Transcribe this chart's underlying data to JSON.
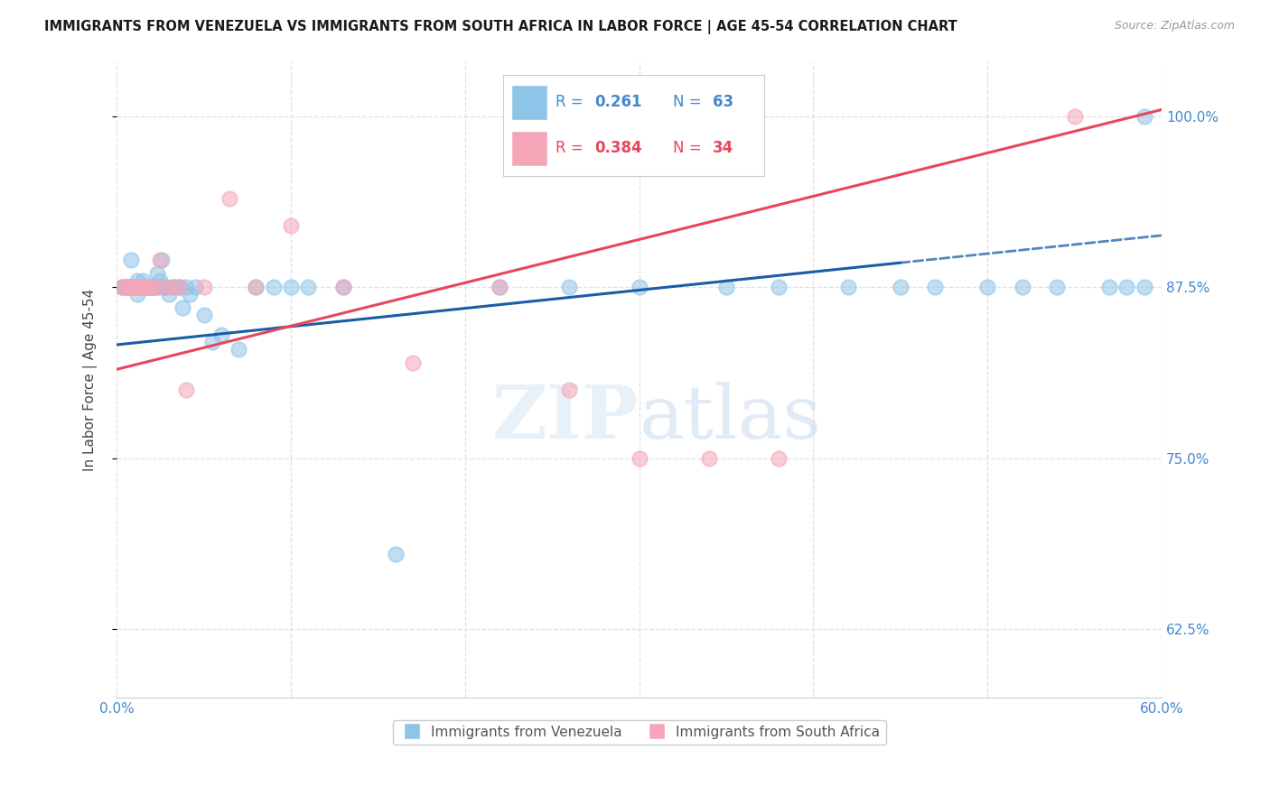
{
  "title": "IMMIGRANTS FROM VENEZUELA VS IMMIGRANTS FROM SOUTH AFRICA IN LABOR FORCE | AGE 45-54 CORRELATION CHART",
  "source": "Source: ZipAtlas.com",
  "ylabel": "In Labor Force | Age 45-54",
  "xlim": [
    0.0,
    0.6
  ],
  "ylim": [
    0.575,
    1.04
  ],
  "yticks": [
    0.625,
    0.75,
    0.875,
    1.0
  ],
  "xticks": [
    0.0,
    0.1,
    0.2,
    0.3,
    0.4,
    0.5,
    0.6
  ],
  "legend_R1": "0.261",
  "legend_N1": "63",
  "legend_R2": "0.384",
  "legend_N2": "34",
  "color_venezuela": "#8ec4e8",
  "color_south_africa": "#f4a6b8",
  "color_trend_venezuela": "#1a5ca8",
  "color_trend_south_africa": "#e8465a",
  "color_axis_blue": "#4488cc",
  "watermark_zip": "ZIP",
  "watermark_atlas": "atlas",
  "background_color": "#ffffff",
  "grid_color": "#e0e0e0",
  "venezuela_x": [
    0.003,
    0.004,
    0.005,
    0.006,
    0.007,
    0.008,
    0.009,
    0.01,
    0.011,
    0.012,
    0.012,
    0.013,
    0.014,
    0.015,
    0.015,
    0.016,
    0.016,
    0.017,
    0.018,
    0.018,
    0.019,
    0.02,
    0.021,
    0.022,
    0.023,
    0.024,
    0.025,
    0.026,
    0.027,
    0.028,
    0.03,
    0.032,
    0.034,
    0.036,
    0.038,
    0.04,
    0.042,
    0.045,
    0.05,
    0.055,
    0.06,
    0.07,
    0.08,
    0.09,
    0.1,
    0.11,
    0.13,
    0.16,
    0.22,
    0.26,
    0.3,
    0.35,
    0.38,
    0.42,
    0.45,
    0.47,
    0.5,
    0.52,
    0.54,
    0.57,
    0.58,
    0.59,
    0.59
  ],
  "venezuela_y": [
    0.875,
    0.875,
    0.875,
    0.875,
    0.875,
    0.895,
    0.875,
    0.875,
    0.875,
    0.88,
    0.87,
    0.875,
    0.875,
    0.88,
    0.875,
    0.875,
    0.875,
    0.875,
    0.875,
    0.875,
    0.875,
    0.875,
    0.875,
    0.875,
    0.885,
    0.875,
    0.88,
    0.895,
    0.875,
    0.875,
    0.87,
    0.875,
    0.875,
    0.875,
    0.86,
    0.875,
    0.87,
    0.875,
    0.855,
    0.835,
    0.84,
    0.83,
    0.875,
    0.875,
    0.875,
    0.875,
    0.875,
    0.68,
    0.875,
    0.875,
    0.875,
    0.875,
    0.875,
    0.875,
    0.875,
    0.875,
    0.875,
    0.875,
    0.875,
    0.875,
    0.875,
    0.875,
    1.0
  ],
  "south_africa_x": [
    0.003,
    0.005,
    0.007,
    0.008,
    0.009,
    0.01,
    0.011,
    0.012,
    0.013,
    0.014,
    0.015,
    0.016,
    0.016,
    0.017,
    0.018,
    0.02,
    0.022,
    0.025,
    0.028,
    0.032,
    0.036,
    0.04,
    0.05,
    0.065,
    0.08,
    0.1,
    0.13,
    0.17,
    0.22,
    0.26,
    0.3,
    0.34,
    0.38,
    0.55
  ],
  "south_africa_y": [
    0.875,
    0.875,
    0.875,
    0.875,
    0.875,
    0.875,
    0.875,
    0.875,
    0.875,
    0.875,
    0.875,
    0.875,
    0.875,
    0.875,
    0.875,
    0.875,
    0.875,
    0.895,
    0.875,
    0.875,
    0.875,
    0.8,
    0.875,
    0.94,
    0.875,
    0.92,
    0.875,
    0.82,
    0.875,
    0.8,
    0.75,
    0.75,
    0.75,
    1.0
  ],
  "trend_ven_x0": 0.0,
  "trend_ven_y0": 0.833,
  "trend_ven_x1": 0.45,
  "trend_ven_y1": 0.893,
  "trend_ven_dash_x1": 0.6,
  "trend_ven_dash_y1": 0.913,
  "trend_sa_x0": 0.0,
  "trend_sa_y0": 0.815,
  "trend_sa_x1": 0.6,
  "trend_sa_y1": 1.005
}
